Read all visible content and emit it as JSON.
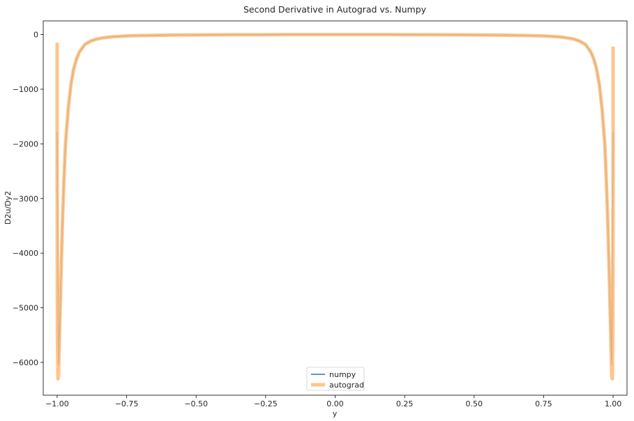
{
  "chart_data": {
    "type": "line",
    "title": "Second Derivative in Autograd vs. Numpy",
    "xlabel": "y",
    "ylabel": "D2u/Dy2",
    "xlim": [
      -1.05,
      1.05
    ],
    "ylim": [
      -6600,
      250
    ],
    "xticks": [
      -1.0,
      -0.75,
      -0.5,
      -0.25,
      0.0,
      0.25,
      0.5,
      0.75,
      1.0
    ],
    "xtick_labels": [
      "−1.00",
      "−0.75",
      "−0.50",
      "−0.25",
      "0.00",
      "0.25",
      "0.50",
      "0.75",
      "1.00"
    ],
    "yticks": [
      0,
      -1000,
      -2000,
      -3000,
      -4000,
      -5000,
      -6000
    ],
    "ytick_labels": [
      "0",
      "−1000",
      "−2000",
      "−3000",
      "−4000",
      "−5000",
      "−6000"
    ],
    "grid": false,
    "legend": {
      "position": "bottom-center",
      "entries": [
        "numpy",
        "autograd"
      ]
    },
    "series": [
      {
        "name": "numpy",
        "color": "#1f77b4",
        "x": [
          -1.0,
          -0.995,
          -0.99,
          -0.985,
          -0.98,
          -0.975,
          -0.97,
          -0.96,
          -0.95,
          -0.94,
          -0.93,
          -0.92,
          -0.9,
          -0.88,
          -0.86,
          -0.84,
          -0.82,
          -0.8,
          -0.75,
          -0.7,
          -0.6,
          -0.5,
          -0.4,
          -0.3,
          -0.2,
          -0.1,
          0.0,
          0.1,
          0.2,
          0.3,
          0.4,
          0.5,
          0.6,
          0.7,
          0.75,
          0.8,
          0.82,
          0.84,
          0.86,
          0.88,
          0.9,
          0.92,
          0.93,
          0.94,
          0.95,
          0.96,
          0.97,
          0.975,
          0.98,
          0.985,
          0.99,
          0.995,
          1.0
        ],
        "y": [
          -1780,
          -6040,
          -5200,
          -4200,
          -3300,
          -2600,
          -2000,
          -1350,
          -900,
          -620,
          -440,
          -320,
          -180,
          -120,
          -85,
          -65,
          -50,
          -40,
          -25,
          -18,
          -10,
          -6,
          -4,
          -2,
          -1,
          -1,
          0,
          -1,
          -1,
          -2,
          -4,
          -6,
          -10,
          -18,
          -25,
          -40,
          -50,
          -65,
          -85,
          -120,
          -180,
          -320,
          -440,
          -620,
          -900,
          -1350,
          -2000,
          -2600,
          -3300,
          -4200,
          -5200,
          -6040,
          -1780
        ]
      },
      {
        "name": "autograd",
        "color": "#ffbb78",
        "x": [
          -1.0,
          -1.0,
          -0.999,
          -0.997,
          -0.995,
          -0.99,
          -0.985,
          -0.98,
          -0.975,
          -0.97,
          -0.96,
          -0.95,
          -0.94,
          -0.93,
          -0.92,
          -0.9,
          -0.88,
          -0.86,
          -0.84,
          -0.82,
          -0.8,
          -0.75,
          -0.7,
          -0.6,
          -0.5,
          -0.4,
          -0.3,
          -0.2,
          -0.1,
          0.0,
          0.1,
          0.2,
          0.3,
          0.4,
          0.5,
          0.6,
          0.7,
          0.75,
          0.8,
          0.82,
          0.84,
          0.86,
          0.88,
          0.9,
          0.92,
          0.93,
          0.94,
          0.95,
          0.96,
          0.97,
          0.975,
          0.98,
          0.985,
          0.99,
          0.995,
          0.997,
          0.999,
          1.0,
          1.0
        ],
        "y": [
          -150,
          -2500,
          -5500,
          -6300,
          -6250,
          -5200,
          -4200,
          -3300,
          -2600,
          -2000,
          -1350,
          -900,
          -620,
          -440,
          -320,
          -180,
          -120,
          -85,
          -65,
          -50,
          -40,
          -25,
          -18,
          -10,
          -6,
          -4,
          -2,
          -1,
          -1,
          0,
          -1,
          -1,
          -2,
          -4,
          -6,
          -10,
          -18,
          -25,
          -40,
          -50,
          -65,
          -85,
          -120,
          -180,
          -320,
          -440,
          -620,
          -900,
          -1350,
          -2000,
          -2600,
          -3300,
          -4200,
          -5200,
          -6250,
          -6300,
          -5500,
          -2500,
          -220
        ]
      }
    ]
  }
}
